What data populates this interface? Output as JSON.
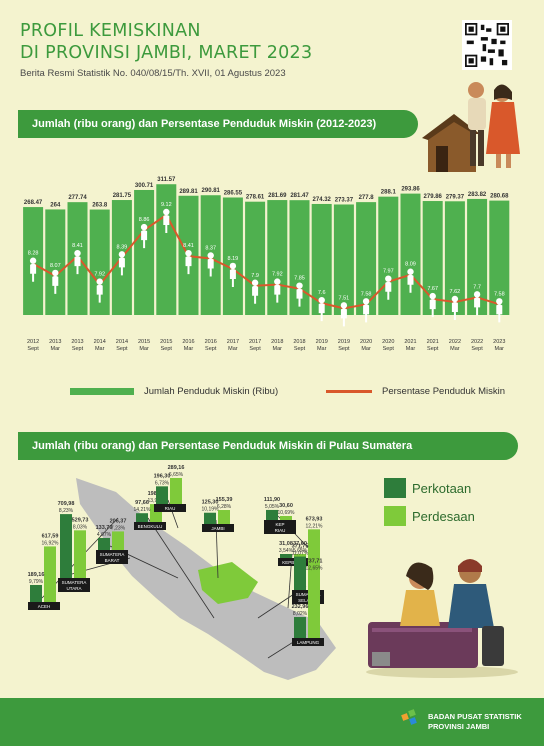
{
  "header": {
    "title_line1": "PROFIL KEMISKINAN",
    "title_line2": "DI  PROVINSI JAMBI, MARET 2023",
    "subtitle": "Berita Resmi Statistik No. 040/08/15/Th. XVII, 01 Agustus 2023"
  },
  "section1": {
    "title": "Jumlah (ribu orang) dan Persentase Penduduk Miskin (2012-2023)"
  },
  "section2": {
    "title": "Jumlah (ribu orang) dan Persentase Penduduk Miskin di Pulau Sumatera"
  },
  "legend": {
    "bar_label": "Jumlah Penduduk Miskin (Ribu)",
    "line_label": "Persentase Penduduk Miskin"
  },
  "map_legend": {
    "urban": "Perkotaan",
    "rural": "Perdesaan"
  },
  "footer": {
    "org_line1": "BADAN PUSAT STATISTIK",
    "org_line2": "PROVINSI JAMBI"
  },
  "colors": {
    "bar": "#4fb04f",
    "line": "#d9582b",
    "urban": "#2e7d3b",
    "rural": "#7fca3a",
    "banner": "#3d9a3d"
  },
  "chart_data": [
    {
      "type": "bar",
      "categories": [
        [
          "2012",
          "Sept"
        ],
        [
          "2013",
          "Mar"
        ],
        [
          "2013",
          "Sept"
        ],
        [
          "2014",
          "Mar"
        ],
        [
          "2014",
          "Sept"
        ],
        [
          "2015",
          "Mar"
        ],
        [
          "2015",
          "Sept"
        ],
        [
          "2016",
          "Mar"
        ],
        [
          "2016",
          "Sept"
        ],
        [
          "2017",
          "Mar"
        ],
        [
          "2017",
          "Sept"
        ],
        [
          "2018",
          "Mar"
        ],
        [
          "2018",
          "Sept"
        ],
        [
          "2019",
          "Mar"
        ],
        [
          "2019",
          "Sept"
        ],
        [
          "2020",
          "Mar"
        ],
        [
          "2020",
          "Sept"
        ],
        [
          "2021",
          "Mar"
        ],
        [
          "2021",
          "Sept"
        ],
        [
          "2022",
          "Mar"
        ],
        [
          "2022",
          "Sept"
        ],
        [
          "2023",
          "Mar"
        ]
      ],
      "series": [
        {
          "name": "Jumlah Penduduk Miskin (Ribu)",
          "type": "bar",
          "values": [
            268.47,
            264,
            277.74,
            263.8,
            281.75,
            300.71,
            311.57,
            289.81,
            290.81,
            286.55,
            278.61,
            281.69,
            281.47,
            274.32,
            273.37,
            277.8,
            288.1,
            293.86,
            279.86,
            279.37,
            283.82,
            280.68
          ],
          "labels": [
            "268.47",
            "264",
            "277.74",
            "263.8",
            "281.75",
            "300.71",
            "311.57",
            "289.81",
            "290.81",
            "286.55",
            "278.61",
            "281.69",
            "281.47",
            "274.32",
            "273.37",
            "277.8",
            "288.1",
            "293.86",
            "279.86",
            "279.37",
            "283.82",
            "280.68"
          ]
        },
        {
          "name": "Persentase Penduduk Miskin",
          "type": "line",
          "values": [
            8.28,
            8.07,
            8.41,
            7.92,
            8.39,
            8.86,
            9.12,
            8.41,
            8.37,
            8.19,
            7.9,
            7.92,
            7.85,
            7.6,
            7.51,
            7.58,
            7.97,
            8.09,
            7.67,
            7.62,
            7.7,
            7.58
          ],
          "labels": [
            "8.28",
            "8.07",
            "8.41",
            "7.92",
            "8.39",
            "8.86",
            "9.12",
            "8.41",
            "8.37",
            "8.19",
            "7.9",
            "7.92",
            "7.85",
            "7.6",
            "7.51",
            "7.58",
            "7.97",
            "8.09",
            "7.67",
            "7.62",
            "7.7",
            "7.58"
          ]
        }
      ]
    },
    {
      "type": "bar",
      "series_names": [
        "Perkotaan",
        "Perdesaan"
      ],
      "regions": [
        {
          "name": "ACEH",
          "urban": 189.16,
          "urban_pct": "9,79%",
          "urban_label": "189,16",
          "rural": 617.59,
          "rural_pct": "16,92%",
          "rural_label": "617,59"
        },
        {
          "name": "SUMATERA UTARA",
          "urban": 709.98,
          "urban_pct": "8,23%",
          "urban_label": "709,98",
          "rural": 529.73,
          "rural_pct": "8,03%",
          "rural_label": "529,73"
        },
        {
          "name": "SUMATERA BARAT",
          "urban": 133.79,
          "urban_pct": "4,67%",
          "urban_label": "133,79",
          "rural": 206.37,
          "rural_pct": "7,23%",
          "rural_label": "206,37"
        },
        {
          "name": "BENGKULU",
          "urban": 97.66,
          "urban_pct": "14,21%",
          "urban_label": "97,66",
          "rural": 198.8,
          "rural_pct": "13,96%",
          "rural_label": "198,80"
        },
        {
          "name": "RIAU",
          "urban": 196.3,
          "urban_pct": "6,73%",
          "urban_label": "196,30",
          "rural": 289.16,
          "rural_pct": "6,65%",
          "rural_label": "289,16"
        },
        {
          "name": "JAMBI",
          "urban": 125.3,
          "urban_pct": "10,19%",
          "urban_label": "125,30",
          "rural": 155.39,
          "rural_pct": "6,28%",
          "rural_label": "155,39"
        },
        {
          "name": "KEP RIAU",
          "urban": 111.9,
          "urban_pct": "5,05%",
          "urban_label": "111,90",
          "rural": 30.6,
          "rural_pct": "10,69%",
          "rural_label": "30,60"
        },
        {
          "name": "KEPBABEL",
          "urban": 31.08,
          "urban_pct": "3,54%",
          "urban_label": "31,08",
          "rural": 37.6,
          "rural_pct": "5,65%",
          "rural_label": "37,60"
        },
        {
          "name": "SUMATERA SELATAN",
          "urban": 371.75,
          "urban_pct": "11,07%",
          "urban_label": "371,75",
          "rural": 673.93,
          "rural_pct": "12,21%",
          "rural_label": "673,93"
        },
        {
          "name": "LAMPUNG",
          "urban": 232.96,
          "urban_pct": "8,02%",
          "urban_label": "232,96",
          "rural": 737.71,
          "rural_pct": "12,65%",
          "rural_label": "737,71"
        }
      ]
    }
  ]
}
